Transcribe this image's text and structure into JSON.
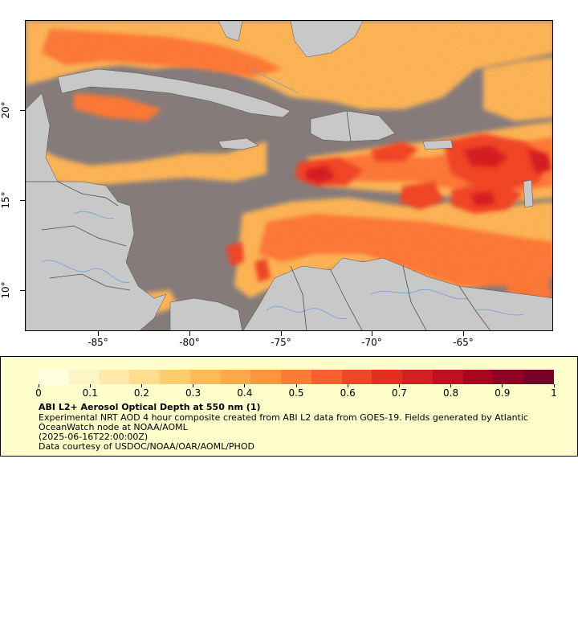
{
  "map": {
    "latitude_labels": [
      "20°",
      "15°",
      "10°"
    ],
    "longitude_labels": [
      "-85°",
      "-80°",
      "-75°",
      "-70°",
      "-65°"
    ],
    "colors": {
      "ocean_no_data": "#808080",
      "land": "#c8c8c8",
      "rivers": "#6fa0d8",
      "borders": "#505050"
    }
  },
  "legend": {
    "title": "ABI L2+ Aerosol Optical Depth at 550 nm (1)",
    "description_line1": "Experimental NRT AOD 4 hour composite created from ABI L2 data from GOES-19. Fields generated by Atlantic",
    "description_line2": "OceanWatch node at NOAA/AOML",
    "timestamp": "(2025-06-16T22:00:00Z)",
    "credit": "Data courtesy of USDOC/NOAA/OAR/AOML/PHOD",
    "colorbar_ticks": [
      "0",
      "0.1",
      "0.2",
      "0.3",
      "0.4",
      "0.5",
      "0.6",
      "0.7",
      "0.8",
      "0.9",
      "1"
    ],
    "colorbar_range": [
      0,
      1
    ],
    "colorbar_colors": [
      "#ffffe0",
      "#fff4c4",
      "#fee9a8",
      "#fedd8c",
      "#fecd6e",
      "#fdbb58",
      "#fda849",
      "#fd9440",
      "#fc7b37",
      "#f8612f",
      "#f04628",
      "#e32f22",
      "#d41f20",
      "#c0101f",
      "#a8061f",
      "#8e0324",
      "#780226"
    ]
  }
}
